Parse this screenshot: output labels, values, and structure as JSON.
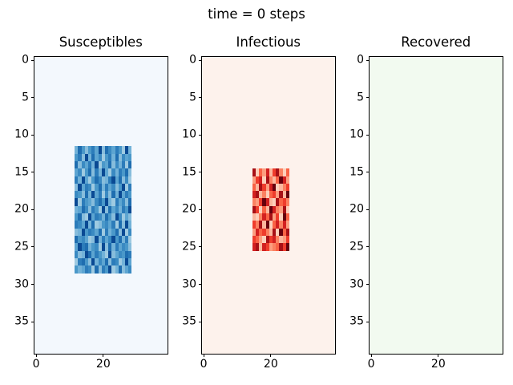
{
  "chart_data": {
    "type": "heatmap",
    "suptitle": "time = 0 steps",
    "grid_size": 40,
    "x_range": [
      -0.5,
      39.5
    ],
    "y_range": [
      -0.5,
      39.5
    ],
    "x_ticks": [
      0,
      20
    ],
    "y_ticks": [
      0,
      5,
      10,
      15,
      20,
      25,
      30,
      35
    ],
    "legend": "none",
    "grid_lines": "off",
    "palettes": {
      "blues": [
        "#b3d3e8",
        "#9ecae1",
        "#87bddc",
        "#72b2d8",
        "#5da5d1",
        "#4a98c9",
        "#3a8ac2",
        "#2c7cba",
        "#1f6eb0",
        "#0a4a94"
      ],
      "reds": [
        "#fee5d9",
        "#fdcfba",
        "#fcb79e",
        "#fc9e80",
        "#fb8161",
        "#f96245",
        "#ef3c2c",
        "#d32020",
        "#a81016",
        "#67000d"
      ]
    },
    "panels": [
      {
        "title": "Susceptibles",
        "colormap": "blues",
        "background_color": "#f3f8fd",
        "patch": {
          "row_start": 12,
          "col_start": 12,
          "rows": 17,
          "cols": 17,
          "cells": [
            "38525749286475193",
            "57293846157382645",
            "82647391548263718",
            "46158273941637582",
            "73941586237948261",
            "29476158374625917",
            "65283947162839475",
            "91754268593174628",
            "34862751928463759",
            "58219476385296142",
            "76493812564718293",
            "23957648173582916",
            "85641293746958371",
            "49783561928374652",
            "62398475319246587",
            "17852936482761394",
            "53476182759138246"
          ]
        }
      },
      {
        "title": "Infectious",
        "colormap": "reds",
        "background_color": "#fdf2ec",
        "patch": {
          "row_start": 15,
          "col_start": 15,
          "rows": 11,
          "cols": 11,
          "cells": [
            "81537268415",
            "36718425973",
            "52863791246",
            "78241563829",
            "43697218564",
            "86152974381",
            "21475836195",
            "64829157473",
            "37564281958",
            "65318674236",
            "78276345869"
          ]
        }
      },
      {
        "title": "Recovered",
        "colormap": "greens",
        "background_color": "#f2faf0",
        "patch": null
      }
    ]
  }
}
